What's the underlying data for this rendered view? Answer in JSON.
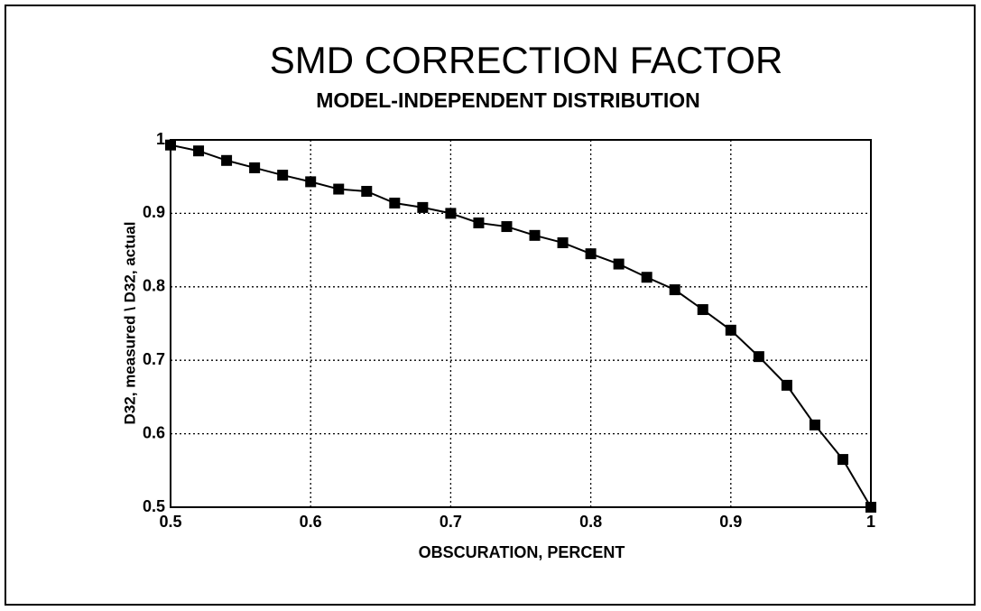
{
  "chart_data": {
    "type": "line",
    "title": "SMD CORRECTION FACTOR",
    "subtitle": "MODEL-INDEPENDENT DISTRIBUTION",
    "x_label": "OBSCURATION, PERCENT",
    "y_label": "D32, measured \\ D32, actual",
    "x": [
      0.5,
      0.52,
      0.54,
      0.56,
      0.58,
      0.6,
      0.62,
      0.64,
      0.66,
      0.68,
      0.7,
      0.72,
      0.74,
      0.76,
      0.78,
      0.8,
      0.82,
      0.84,
      0.86,
      0.88,
      0.9,
      0.92,
      0.94,
      0.96,
      0.98,
      1.0
    ],
    "series": [
      {
        "color": "#000000",
        "values": [
          0.993,
          0.985,
          0.972,
          0.962,
          0.952,
          0.943,
          0.933,
          0.93,
          0.914,
          0.908,
          0.9,
          0.887,
          0.882,
          0.87,
          0.86,
          0.845,
          0.831,
          0.813,
          0.796,
          0.769,
          0.741,
          0.705,
          0.666,
          0.612,
          0.565,
          0.5
        ]
      }
    ],
    "xlim": [
      0.5,
      1
    ],
    "xticks": [
      0.5,
      0.6,
      0.7,
      0.8,
      0.9,
      1
    ],
    "ylim": [
      0.5,
      1
    ],
    "yticks": [
      0.5,
      0.6,
      0.7,
      0.8,
      0.9,
      1
    ],
    "grid": true
  }
}
